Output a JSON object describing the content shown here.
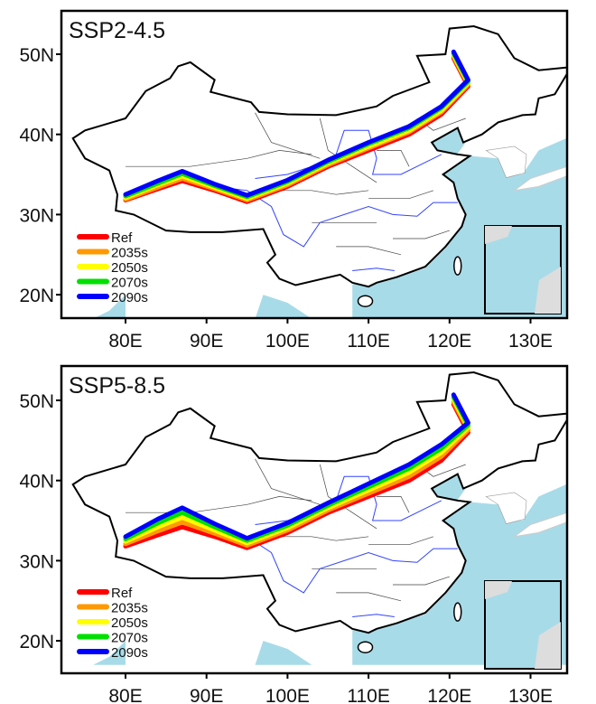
{
  "chart_data": [
    {
      "type": "map",
      "title": "SSP2-4.5",
      "x_ticks": [
        "80E",
        "90E",
        "100E",
        "110E",
        "120E",
        "130E"
      ],
      "y_ticks": [
        "50N",
        "40N",
        "30N",
        "20N"
      ],
      "x_tick_values": [
        80,
        90,
        100,
        110,
        120,
        130
      ],
      "y_tick_values": [
        50,
        40,
        30,
        20
      ],
      "lon_range": [
        72,
        134.5
      ],
      "lat_range": [
        17,
        55.4
      ],
      "legend_position": "bottom-left",
      "series": [
        {
          "name": "Ref",
          "color": "#ff0000",
          "lon": [
            80,
            84,
            87,
            91,
            95,
            100,
            105,
            110,
            115,
            119,
            122.3,
            120.5
          ],
          "lat": [
            31.8,
            33.2,
            34.2,
            33.0,
            31.6,
            33.5,
            36.0,
            38.0,
            40.0,
            42.5,
            46.0,
            49.5
          ]
        },
        {
          "name": "2035s",
          "color": "#ff9900",
          "lon": [
            80,
            84,
            87,
            91,
            95,
            100,
            105,
            110,
            115,
            119,
            122.3,
            120.5
          ],
          "lat": [
            31.9,
            33.4,
            34.5,
            33.2,
            31.8,
            33.7,
            36.2,
            38.3,
            40.3,
            42.8,
            46.2,
            49.7
          ]
        },
        {
          "name": "2050s",
          "color": "#ffff00",
          "lon": [
            80,
            84,
            87,
            91,
            95,
            100,
            105,
            110,
            115,
            119,
            122.3,
            120.5
          ],
          "lat": [
            32.1,
            33.7,
            34.8,
            33.4,
            32.0,
            33.9,
            36.4,
            38.5,
            40.5,
            43.0,
            46.4,
            49.9
          ]
        },
        {
          "name": "2070s",
          "color": "#00e000",
          "lon": [
            80,
            84,
            87,
            91,
            95,
            100,
            105,
            110,
            115,
            119,
            122.3,
            120.5
          ],
          "lat": [
            32.3,
            33.9,
            35.1,
            33.6,
            32.2,
            34.1,
            36.6,
            38.8,
            40.8,
            43.3,
            46.6,
            50.1
          ]
        },
        {
          "name": "2090s",
          "color": "#0000ff",
          "lon": [
            80,
            84,
            87,
            91,
            95,
            100,
            105,
            110,
            115,
            119,
            122.3,
            120.5
          ],
          "lat": [
            32.5,
            34.2,
            35.4,
            33.8,
            32.4,
            34.3,
            36.8,
            39.0,
            41.0,
            43.5,
            46.8,
            50.3
          ]
        }
      ]
    },
    {
      "type": "map",
      "title": "SSP5-8.5",
      "x_ticks": [
        "80E",
        "90E",
        "100E",
        "110E",
        "120E",
        "130E"
      ],
      "y_ticks": [
        "50N",
        "40N",
        "30N",
        "20N"
      ],
      "x_tick_values": [
        80,
        90,
        100,
        110,
        120,
        130
      ],
      "y_tick_values": [
        50,
        40,
        30,
        20
      ],
      "lon_range": [
        72,
        134.5
      ],
      "lat_range": [
        17,
        55.4
      ],
      "legend_position": "bottom-left",
      "series": [
        {
          "name": "Ref",
          "color": "#ff0000",
          "lon": [
            80,
            84,
            87,
            91,
            95,
            100,
            105,
            110,
            115,
            119,
            122.3,
            120.5
          ],
          "lat": [
            31.8,
            33.2,
            34.2,
            33.0,
            31.6,
            33.5,
            36.0,
            38.0,
            40.0,
            42.5,
            46.0,
            49.5
          ]
        },
        {
          "name": "2035s",
          "color": "#ff9900",
          "lon": [
            80,
            84,
            87,
            91,
            95,
            100,
            105,
            110,
            115,
            119,
            122.3,
            120.5
          ],
          "lat": [
            32.1,
            33.7,
            34.8,
            33.4,
            31.9,
            33.8,
            36.3,
            38.4,
            40.5,
            43.0,
            46.3,
            49.8
          ]
        },
        {
          "name": "2050s",
          "color": "#ffff00",
          "lon": [
            80,
            84,
            87,
            91,
            95,
            100,
            105,
            110,
            115,
            119,
            122.3,
            120.5
          ],
          "lat": [
            32.4,
            34.2,
            35.4,
            33.8,
            32.2,
            34.1,
            36.6,
            38.8,
            41.0,
            43.5,
            46.6,
            50.1
          ]
        },
        {
          "name": "2070s",
          "color": "#00e000",
          "lon": [
            80,
            84,
            87,
            91,
            95,
            100,
            105,
            110,
            115,
            119,
            122.3,
            120.5
          ],
          "lat": [
            32.7,
            34.7,
            36.0,
            34.2,
            32.5,
            34.4,
            36.9,
            39.2,
            41.5,
            44.0,
            46.9,
            50.4
          ]
        },
        {
          "name": "2090s",
          "color": "#0000ff",
          "lon": [
            80,
            84,
            87,
            91,
            95,
            100,
            105,
            110,
            115,
            119,
            122.3,
            120.5
          ],
          "lat": [
            33.0,
            35.2,
            36.6,
            34.6,
            32.8,
            34.7,
            37.2,
            39.6,
            42.0,
            44.5,
            47.2,
            50.7
          ]
        }
      ]
    }
  ],
  "colors": {
    "ocean": "#a8dbe8",
    "land": "#ffffff",
    "border": "#000000",
    "river": "#3344ff"
  }
}
